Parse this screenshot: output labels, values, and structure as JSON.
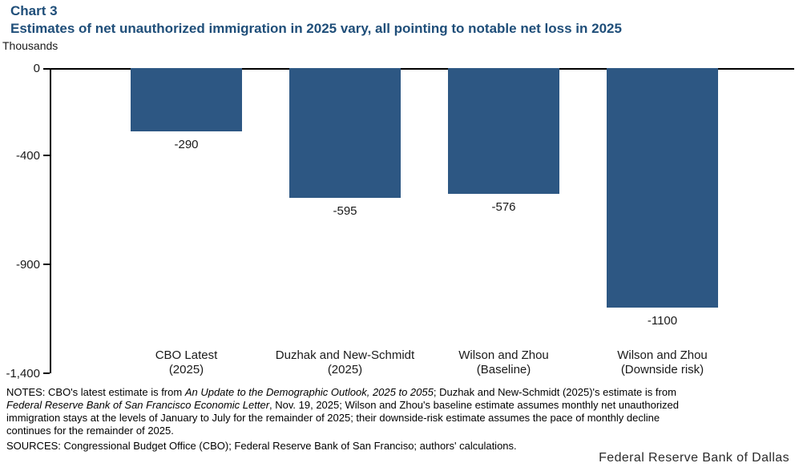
{
  "header": {
    "chart_label": "Chart 3",
    "title": "Estimates of net unauthorized immigration in 2025 vary, all pointing to notable net loss in 2025",
    "units_label": "Thousands"
  },
  "colors": {
    "title_navy": "#1F4E79",
    "bar_blue": "#2D5783",
    "axis_black": "#000000"
  },
  "chart_data": {
    "type": "bar",
    "title": "Estimates of net unauthorized immigration in 2025 vary, all pointing to notable net loss in 2025",
    "units": "Thousands",
    "categories": [
      "CBO Latest (2025)",
      "Duzhak and New-Schmidt (2025)",
      "Wilson and Zhou (Baseline)",
      "Wilson and Zhou (Downside risk)"
    ],
    "category_label_lines": [
      [
        "CBO Latest",
        "(2025)"
      ],
      [
        "Duzhak and New-Schmidt",
        "(2025)"
      ],
      [
        "Wilson and Zhou",
        "(Baseline)"
      ],
      [
        "Wilson and Zhou",
        "(Downside risk)"
      ]
    ],
    "values": [
      -290,
      -595,
      -576,
      -1100
    ],
    "data_labels": [
      "-290",
      "-595",
      "-576",
      "-1100"
    ],
    "bar_color": "#2D5783",
    "ylim": [
      -1400,
      0
    ],
    "yticks": [
      0,
      -400,
      -900,
      -1400
    ],
    "ytick_labels": [
      "0",
      "-400",
      "-900",
      "-1,400"
    ],
    "grid": false,
    "legend": false
  },
  "notes": {
    "lines": [
      [
        {
          "t": "NOTES: CBO's latest estimate is from ",
          "i": 0
        },
        {
          "t": "An Update to the Demographic Outlook, 2025 to 2055",
          "i": 1
        },
        {
          "t": "; Duzhak and New-Schmidt (2025)'s estimate is from",
          "i": 0
        }
      ],
      [
        {
          "t": "Federal Reserve Bank of San Francisco Economic Letter",
          "i": 1
        },
        {
          "t": ", Nov. 19, 2025; Wilson and Zhou's baseline estimate assumes monthly net unauthorized",
          "i": 0
        }
      ],
      [
        {
          "t": "immigration stays at the levels of January to July for the remainder of 2025; their downside-risk estimate assumes the pace of  monthly decline",
          "i": 0
        }
      ],
      [
        {
          "t": "continues for the remainder of 2025.",
          "i": 0
        }
      ]
    ],
    "sources": "SOURCES:  Congressional Budget Office (CBO); Federal Reserve Bank of San Franciso; authors' calculations."
  },
  "footer": {
    "brand": "Federal Reserve Bank of Dallas"
  }
}
